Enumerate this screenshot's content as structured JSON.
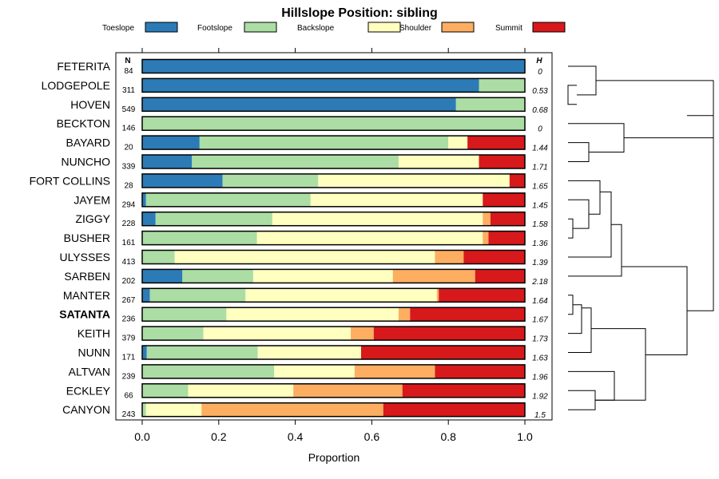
{
  "chart_data": {
    "type": "bar",
    "stacked": "horizontal-proportion",
    "title": "Hillslope Position: sibling",
    "xlabel": "Proportion",
    "xlim": [
      0,
      1
    ],
    "x_ticks": [
      0.0,
      0.2,
      0.4,
      0.6,
      0.8,
      1.0
    ],
    "x_tick_labels": [
      "0.0",
      "0.2",
      "0.4",
      "0.6",
      "0.8",
      "1.0"
    ],
    "n_header": "N",
    "h_header": "H",
    "highlight": "SATANTA",
    "legend": [
      {
        "name": "Toeslope",
        "color": "#2c7bb6"
      },
      {
        "name": "Footslope",
        "color": "#abdda4"
      },
      {
        "name": "Backslope",
        "color": "#ffffbf"
      },
      {
        "name": "Shoulder",
        "color": "#fdae61"
      },
      {
        "name": "Summit",
        "color": "#d7191c"
      }
    ],
    "rows": [
      {
        "name": "FETERITA",
        "n": "84",
        "h": "0",
        "values": [
          1.0,
          0,
          0,
          0,
          0
        ]
      },
      {
        "name": "LODGEPOLE",
        "n": "311",
        "h": "0.53",
        "values": [
          0.88,
          0.12,
          0,
          0,
          0
        ]
      },
      {
        "name": "HOVEN",
        "n": "549",
        "h": "0.68",
        "values": [
          0.82,
          0.18,
          0,
          0,
          0
        ]
      },
      {
        "name": "BECKTON",
        "n": "146",
        "h": "0",
        "values": [
          0,
          1.0,
          0,
          0,
          0
        ]
      },
      {
        "name": "BAYARD",
        "n": "20",
        "h": "1.44",
        "values": [
          0.15,
          0.65,
          0.05,
          0,
          0.15
        ]
      },
      {
        "name": "NUNCHO",
        "n": "339",
        "h": "1.71",
        "values": [
          0.13,
          0.54,
          0.21,
          0,
          0.12
        ]
      },
      {
        "name": "FORT COLLINS",
        "n": "28",
        "h": "1.65",
        "values": [
          0.21,
          0.25,
          0.5,
          0,
          0.04
        ]
      },
      {
        "name": "JAYEM",
        "n": "294",
        "h": "1.45",
        "values": [
          0.01,
          0.43,
          0.45,
          0,
          0.11
        ]
      },
      {
        "name": "ZIGGY",
        "n": "228",
        "h": "1.58",
        "values": [
          0.035,
          0.305,
          0.55,
          0.02,
          0.09
        ]
      },
      {
        "name": "BUSHER",
        "n": "161",
        "h": "1.36",
        "values": [
          0,
          0.3,
          0.59,
          0.015,
          0.095
        ]
      },
      {
        "name": "ULYSSES",
        "n": "413",
        "h": "1.39",
        "values": [
          0,
          0.085,
          0.68,
          0.075,
          0.16
        ]
      },
      {
        "name": "SARBEN",
        "n": "202",
        "h": "2.18",
        "values": [
          0.105,
          0.185,
          0.365,
          0.215,
          0.13
        ]
      },
      {
        "name": "MANTER",
        "n": "267",
        "h": "1.64",
        "values": [
          0.02,
          0.25,
          0.5,
          0.005,
          0.225
        ]
      },
      {
        "name": "SATANTA",
        "n": "236",
        "h": "1.67",
        "values": [
          0,
          0.22,
          0.45,
          0.03,
          0.3
        ]
      },
      {
        "name": "KEITH",
        "n": "379",
        "h": "1.73",
        "values": [
          0,
          0.16,
          0.385,
          0.06,
          0.395
        ]
      },
      {
        "name": "NUNN",
        "n": "171",
        "h": "1.63",
        "values": [
          0.012,
          0.29,
          0.27,
          0,
          0.428
        ]
      },
      {
        "name": "ALTVAN",
        "n": "239",
        "h": "1.96",
        "values": [
          0,
          0.345,
          0.21,
          0.21,
          0.235
        ]
      },
      {
        "name": "ECKLEY",
        "n": "66",
        "h": "1.92",
        "values": [
          0,
          0.12,
          0.275,
          0.285,
          0.32
        ]
      },
      {
        "name": "CANYON",
        "n": "243",
        "h": "1.5",
        "values": [
          0,
          0.01,
          0.145,
          0.475,
          0.37
        ]
      }
    ]
  }
}
